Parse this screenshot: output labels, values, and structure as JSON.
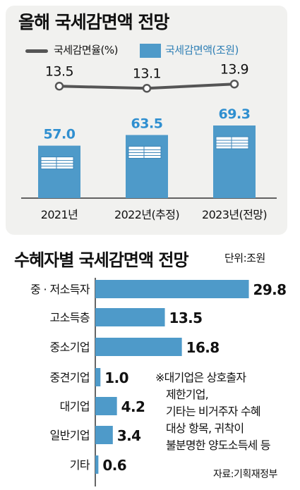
{
  "top": {
    "title": "올해 국세감면액 전망",
    "legend_line": "국세감면율(%)",
    "legend_bar": "국세감면액(조원)"
  },
  "bottom": {
    "title": "수혜자별 국세감면액 전망",
    "unit": "단위:조원",
    "note_lines": [
      "※대기업은 상호출자",
      "제한기업,",
      "기타는 비거주자 수혜",
      "대상 항목, 귀착이",
      "불분명한 양도소득세 등"
    ],
    "source": "자료:기획재정부"
  },
  "chart_data": [
    {
      "type": "bar",
      "title": "올해 국세감면액 전망",
      "categories": [
        "2021년",
        "2022년(추정)",
        "2023년(전망)"
      ],
      "series": [
        {
          "name": "국세감면액(조원)",
          "type": "bar",
          "values": [
            57.0,
            63.5,
            69.3
          ],
          "labels": [
            "57.0",
            "63.5",
            "69.3"
          ]
        },
        {
          "name": "국세감면율(%)",
          "type": "line",
          "values": [
            13.5,
            13.1,
            13.9
          ],
          "labels": [
            "13.5",
            "13.1",
            "13.9"
          ]
        }
      ],
      "colors": {
        "bar": "#4e9ac9",
        "line": "#555555"
      }
    },
    {
      "type": "bar",
      "orientation": "horizontal",
      "title": "수혜자별 국세감면액 전망",
      "unit": "단위:조원",
      "categories": [
        "중 · 저소득자",
        "고소득층",
        "중소기업",
        "중견기업",
        "대기업",
        "일반기업",
        "기타"
      ],
      "values": [
        29.8,
        13.5,
        16.8,
        1.0,
        4.2,
        3.4,
        0.6
      ],
      "labels": [
        "29.8",
        "13.5",
        "16.8",
        "1.0",
        "4.2",
        "3.4",
        "0.6"
      ],
      "colors": {
        "bar": "#4e9ac9"
      }
    }
  ]
}
